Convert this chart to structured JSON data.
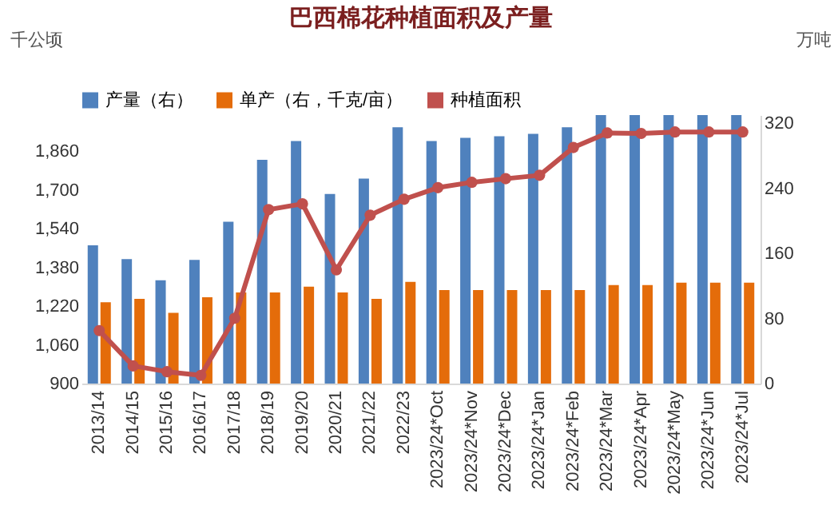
{
  "chart_data": {
    "type": "bar",
    "title": "巴西棉花种植面积及产量",
    "ylabel": "千公顷",
    "y2label": "万吨",
    "categories": [
      "2013/14",
      "2014/15",
      "2015/16",
      "2016/17",
      "2017/18",
      "2018/19",
      "2019/20",
      "2020/21",
      "2021/22",
      "2022/23",
      "2023/24*Oct",
      "2023/24*Nov",
      "2023/24*Dec",
      "2023/24*Jan",
      "2023/24*Feb",
      "2023/24*Mar",
      "2023/24*Apr",
      "2023/24*May",
      "2023/24*Jun",
      "2023/24*Jul"
    ],
    "series": [
      {
        "name": "产量（右）",
        "axis": "y2",
        "color": "#4f81bd",
        "values": [
          170,
          153,
          127,
          152,
          199,
          275,
          298,
          233,
          252,
          315,
          298,
          302,
          304,
          307,
          315,
          330,
          330,
          330,
          330,
          330
        ]
      },
      {
        "name": "单产（右，千克/亩）",
        "axis": "y2",
        "color": "#e46c0a",
        "values": [
          100,
          104,
          87,
          106,
          112,
          112,
          119,
          112,
          104,
          125,
          115,
          115,
          115,
          115,
          115,
          121,
          121,
          124,
          124,
          124
        ]
      },
      {
        "name": "种植面积",
        "type": "line",
        "color": "#c0504d",
        "marker": "circle",
        "values": [
          1119,
          973,
          949,
          934,
          1170,
          1619,
          1643,
          1370,
          1596,
          1662,
          1710,
          1732,
          1747,
          1761,
          1876,
          1936,
          1934,
          1940,
          1940,
          1940
        ]
      }
    ],
    "ylim": [
      900,
      2010
    ],
    "yticks": [
      900,
      {
        "value": 1060,
        "label": "1,060"
      },
      {
        "value": 1220,
        "label": "1,220"
      },
      {
        "value": 1380,
        "label": "1,380"
      },
      {
        "value": 1540,
        "label": "1,540"
      },
      {
        "value": 1700,
        "label": "1,700"
      },
      {
        "value": 1860,
        "label": "1,860"
      }
    ],
    "y2lim": [
      0,
      330
    ],
    "y2ticks": [
      0,
      80,
      160,
      240,
      320
    ],
    "legend": "top",
    "grid": false
  }
}
